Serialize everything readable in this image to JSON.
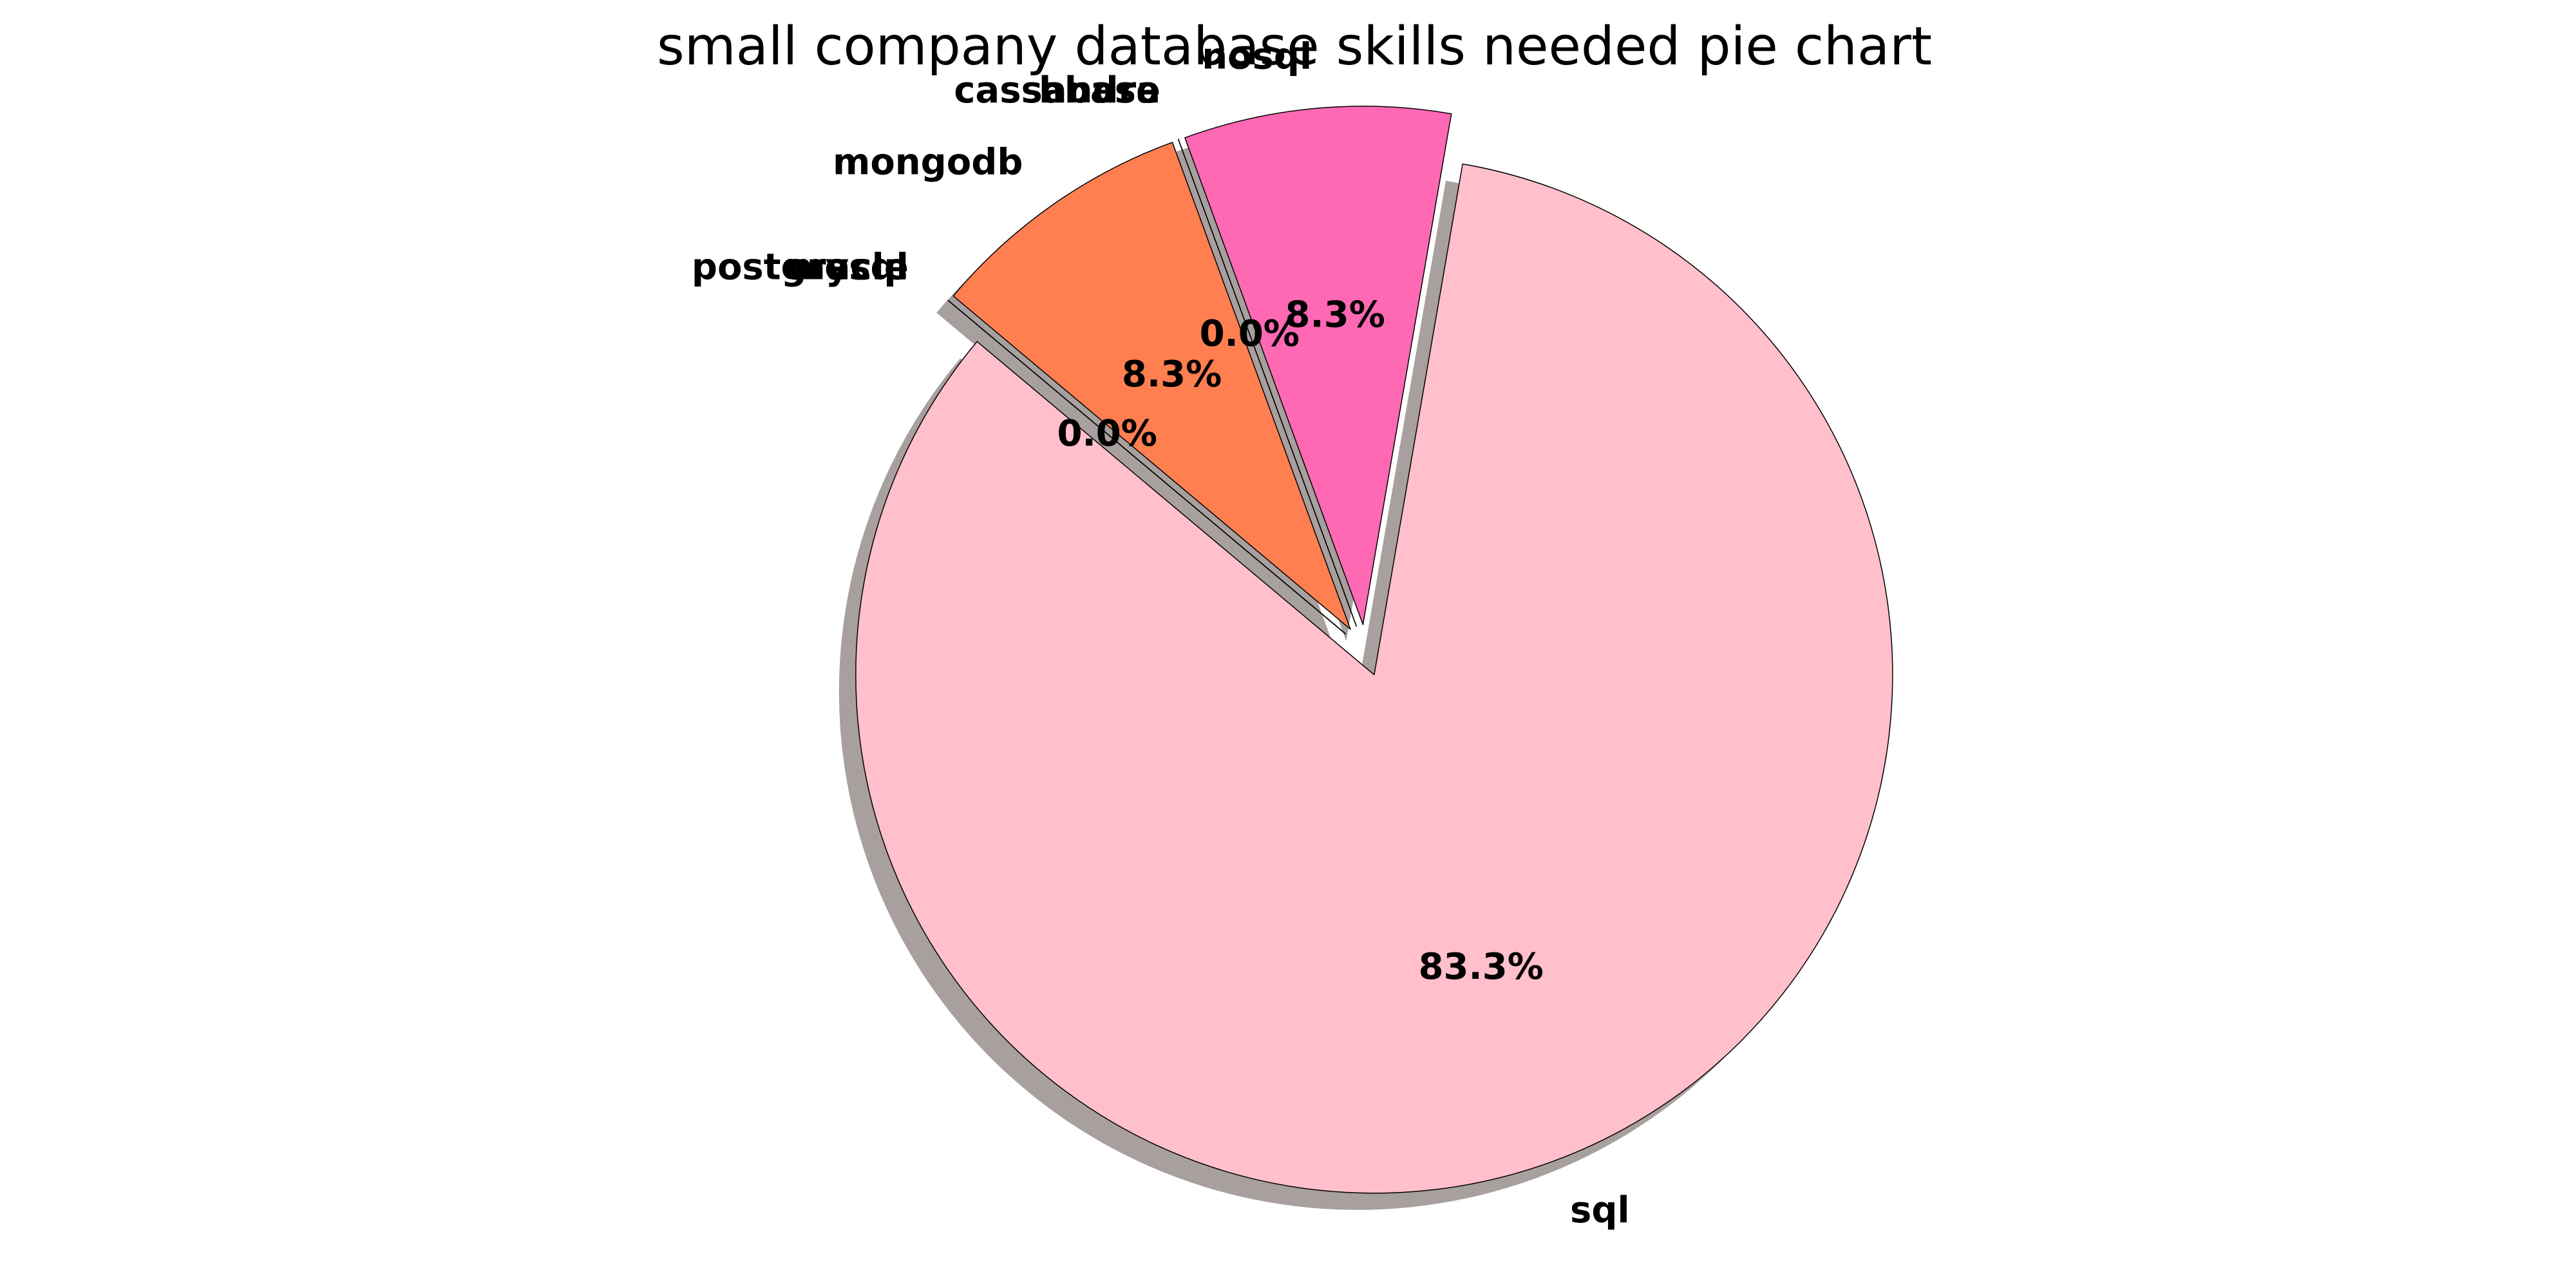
{
  "chart_data": {
    "type": "pie",
    "title": "small company database skills needed pie chart",
    "slices": [
      {
        "label": "sql",
        "value": 83.3,
        "pct_label": "83.3%",
        "color": "#ffc0cb"
      },
      {
        "label": "nosql",
        "value": 8.3,
        "pct_label": "8.3%",
        "color": "#ff69b4"
      },
      {
        "label": "hbase",
        "value": 0.0,
        "pct_label": "0.0%",
        "color": "#ff7f50"
      },
      {
        "label": "cassandra",
        "value": 0.0,
        "pct_label": "0.0%",
        "color": "#ff7f50"
      },
      {
        "label": "mongodb",
        "value": 8.3,
        "pct_label": "8.3%",
        "color": "#ff7f50"
      },
      {
        "label": "postgresql",
        "value": 0.0,
        "pct_label": "0.0%",
        "color": "#ff7f50"
      },
      {
        "label": "mysql",
        "value": 0.0,
        "pct_label": "0.0%",
        "color": "#ff7f50"
      },
      {
        "label": "oracle",
        "value": 0.0,
        "pct_label": "0.0%",
        "color": "#ff7f50"
      }
    ],
    "shadow": true,
    "shadow_color": "#a89f9f",
    "edge_color": "#000000",
    "start_angle_deg": 140,
    "explode": [
      0.05,
      0.05,
      0.05,
      0.05,
      0.05,
      0.05,
      0.05,
      0.05
    ]
  }
}
